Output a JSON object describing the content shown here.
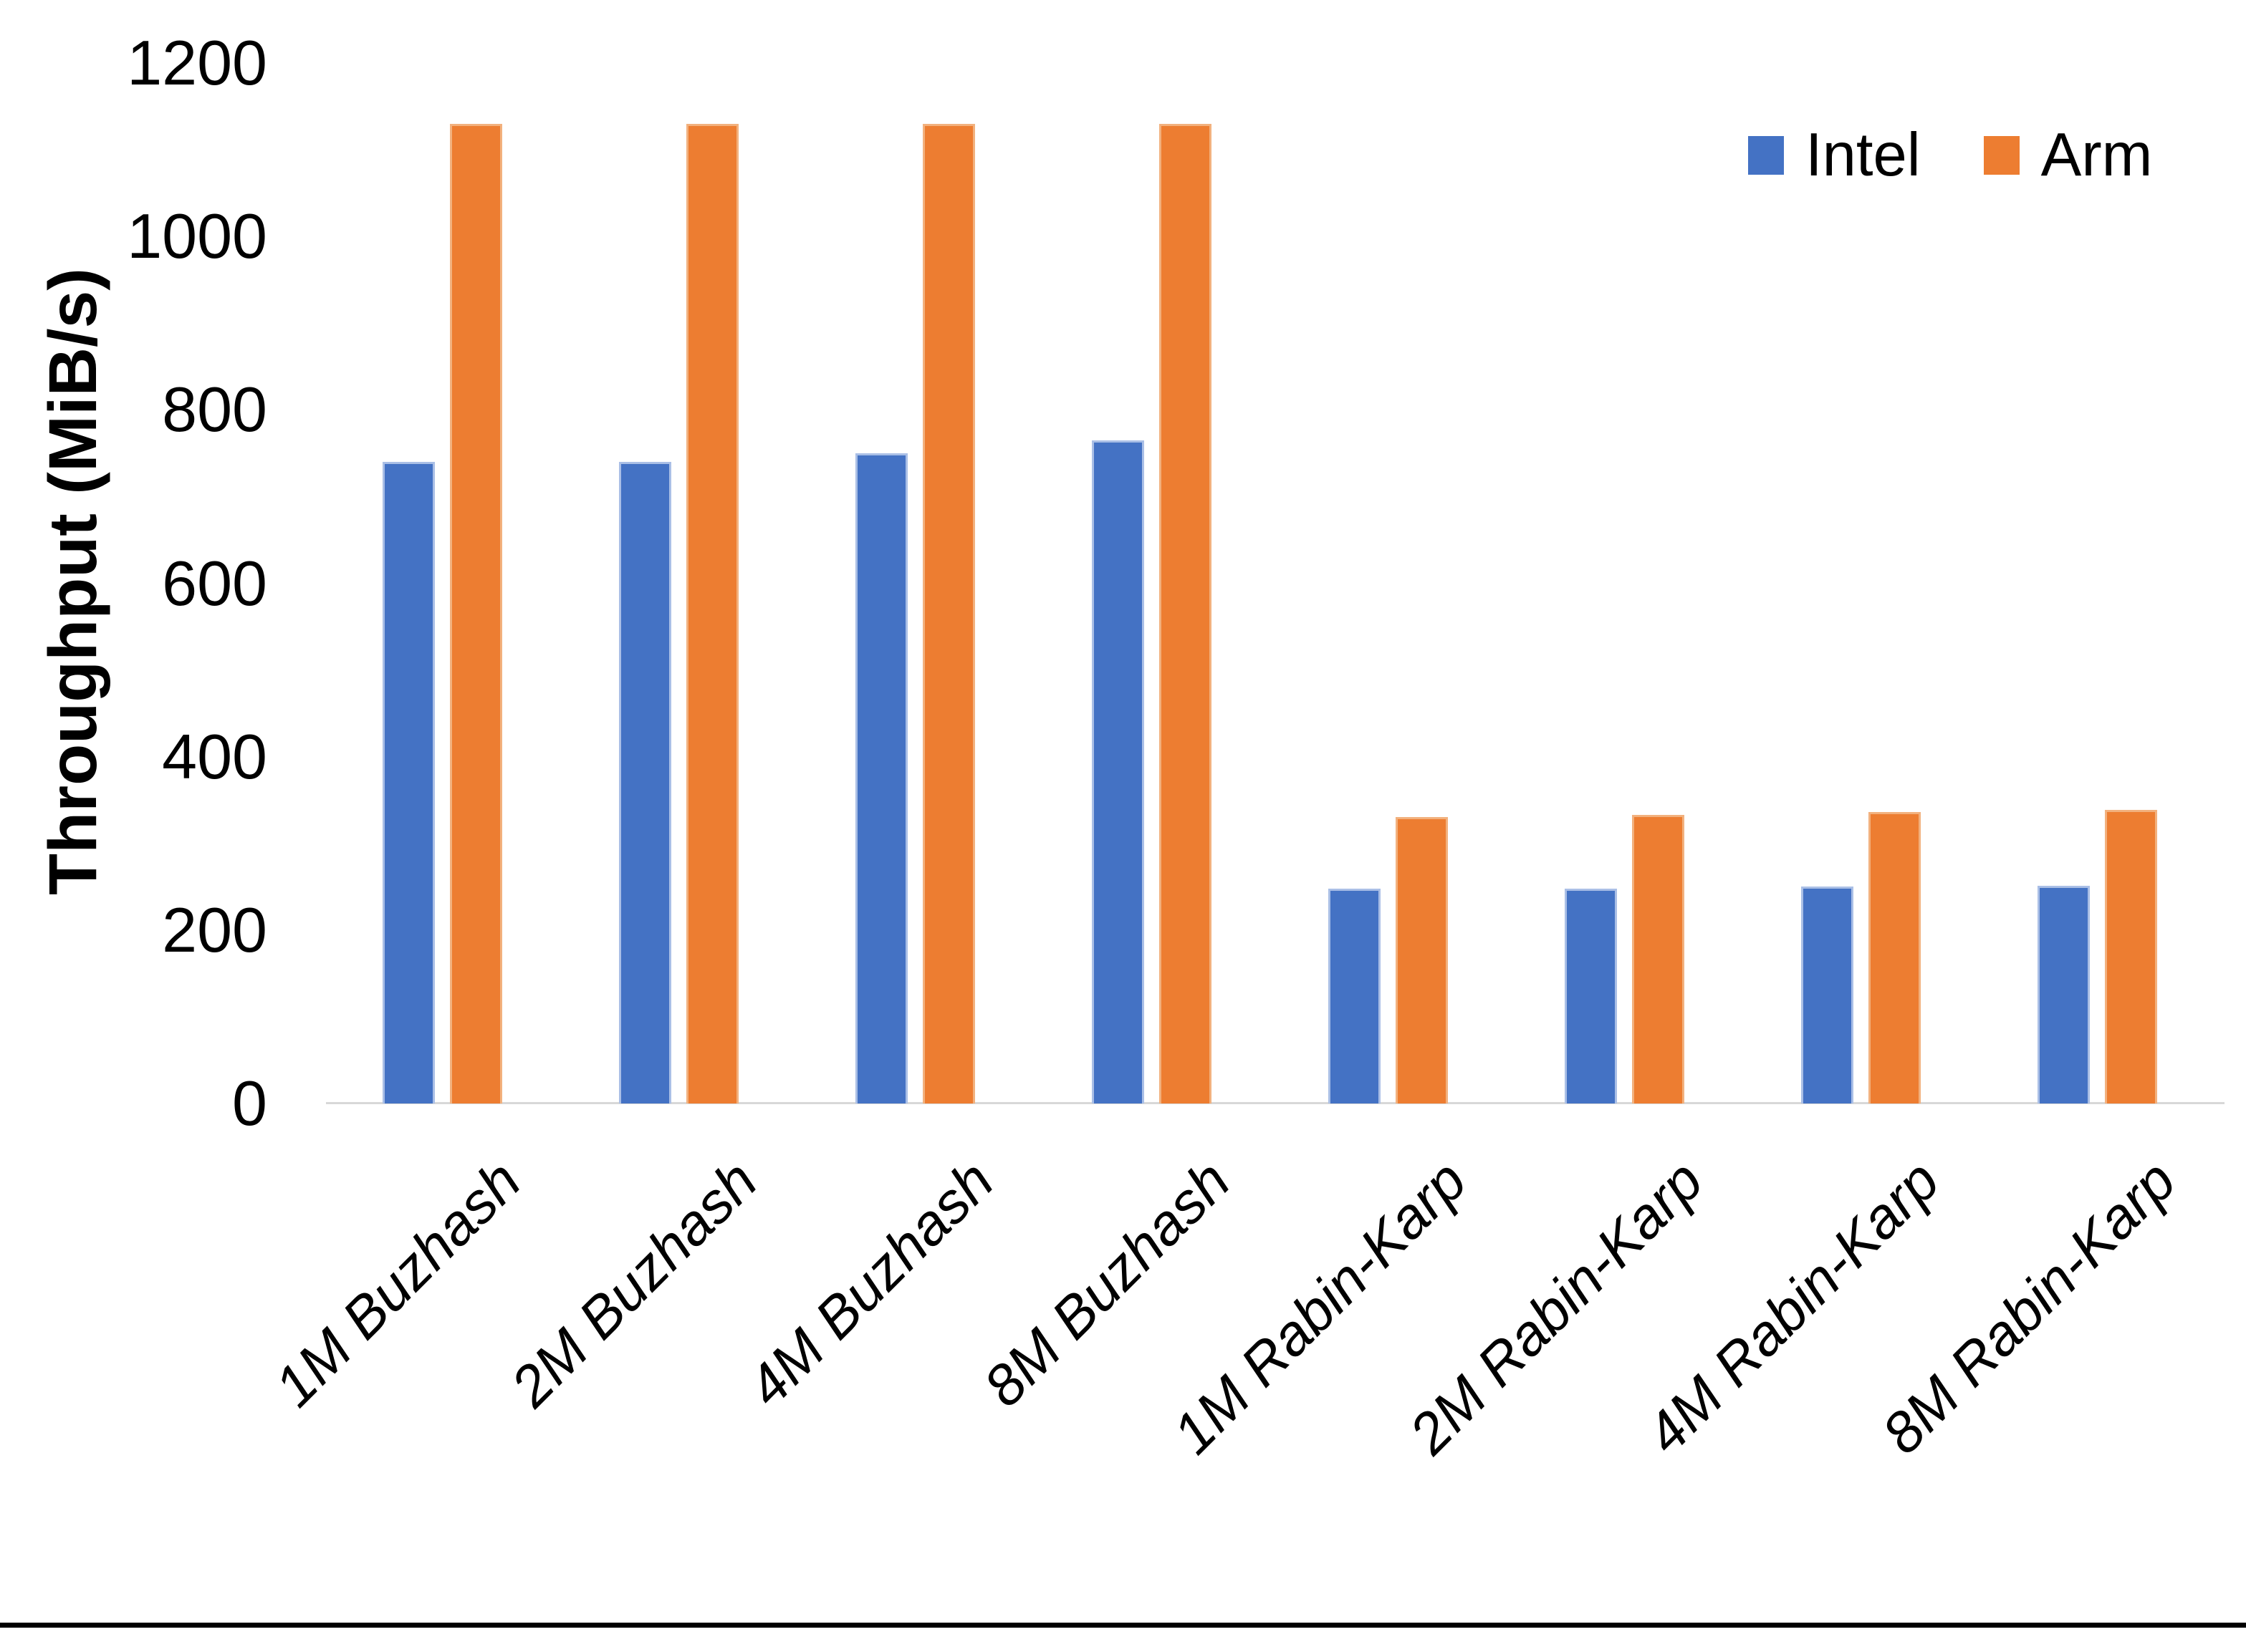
{
  "chart_data": {
    "type": "bar",
    "title": "",
    "categories": [
      "1M Buzhash",
      "2M Buzhash",
      "4M Buzhash",
      "8M Buzhash",
      "1M Rabin-Karp",
      "2M Rabin-Karp",
      "4M Rabin-Karp",
      "8M Rabin-Karp"
    ],
    "series": [
      {
        "name": "Intel",
        "color": "#4472C4",
        "values": [
          740,
          740,
          750,
          765,
          248,
          248,
          250,
          251
        ]
      },
      {
        "name": "Arm",
        "color": "#ED7D31",
        "values": [
          1130,
          1130,
          1130,
          1130,
          330,
          333,
          336,
          339
        ]
      }
    ],
    "xlabel": "",
    "ylabel": "Throughput (MiB/s)",
    "ylim": [
      0,
      1200
    ],
    "yticks": [
      0,
      200,
      400,
      600,
      800,
      1000,
      1200
    ],
    "grid": false,
    "legend_position": "top-right",
    "axis_line_color": "#d8d8d8",
    "background_color": "#ffffff"
  }
}
